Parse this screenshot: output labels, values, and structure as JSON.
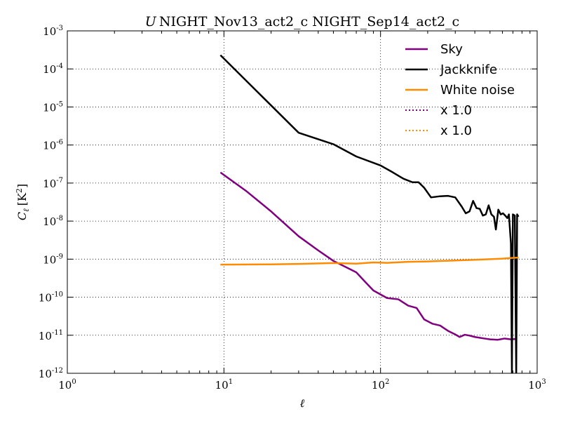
{
  "chart_data": {
    "type": "line",
    "title_symbol": "U",
    "title": "NIGHT_Nov13_act2_c NIGHT_Sep14_act2_c",
    "xlabel": "ℓ",
    "ylabel_main": "C",
    "ylabel_sub": "ℓ",
    "ylabel_unit": "[K",
    "ylabel_unit_sup": "2",
    "ylabel_unit_end": "]",
    "xscale": "log",
    "yscale": "log",
    "xlim": [
      1,
      1000
    ],
    "ylim": [
      1e-12,
      0.001
    ],
    "grid": true,
    "legend_position": "top-right",
    "x_ticks": [
      {
        "value": 1,
        "base": "10",
        "exp": "0"
      },
      {
        "value": 10,
        "base": "10",
        "exp": "1"
      },
      {
        "value": 100,
        "base": "10",
        "exp": "2"
      },
      {
        "value": 1000,
        "base": "10",
        "exp": "3"
      }
    ],
    "y_ticks": [
      {
        "value": 1e-12,
        "base": "10",
        "exp": "-12"
      },
      {
        "value": 1e-11,
        "base": "10",
        "exp": "-11"
      },
      {
        "value": 1e-10,
        "base": "10",
        "exp": "-10"
      },
      {
        "value": 1e-09,
        "base": "10",
        "exp": "-9"
      },
      {
        "value": 1e-08,
        "base": "10",
        "exp": "-8"
      },
      {
        "value": 1e-07,
        "base": "10",
        "exp": "-7"
      },
      {
        "value": 1e-06,
        "base": "10",
        "exp": "-6"
      },
      {
        "value": 1e-05,
        "base": "10",
        "exp": "-5"
      },
      {
        "value": 0.0001,
        "base": "10",
        "exp": "-4"
      },
      {
        "value": 0.001,
        "base": "10",
        "exp": "-3"
      }
    ],
    "series": [
      {
        "name": "Sky",
        "color": "#800080",
        "style": "solid",
        "points": [
          [
            9.5,
            1.9e-07
          ],
          [
            14,
            6e-08
          ],
          [
            20,
            1.8e-08
          ],
          [
            30,
            4e-09
          ],
          [
            40,
            1.7e-09
          ],
          [
            50,
            9e-10
          ],
          [
            60,
            6.2e-10
          ],
          [
            70,
            4.5e-10
          ],
          [
            80,
            2.5e-10
          ],
          [
            90,
            1.5e-10
          ],
          [
            110,
            9.5e-11
          ],
          [
            130,
            8.8e-11
          ],
          [
            150,
            6e-11
          ],
          [
            170,
            5.2e-11
          ],
          [
            190,
            2.6e-11
          ],
          [
            215,
            2e-11
          ],
          [
            240,
            1.8e-11
          ],
          [
            270,
            1.3e-11
          ],
          [
            300,
            1.05e-11
          ],
          [
            320,
            9e-12
          ],
          [
            345,
            1.03e-11
          ],
          [
            370,
            9.8e-12
          ],
          [
            400,
            9e-12
          ],
          [
            430,
            8.6e-12
          ],
          [
            460,
            8.2e-12
          ],
          [
            500,
            7.8e-12
          ],
          [
            560,
            7.6e-12
          ],
          [
            620,
            8.2e-12
          ],
          [
            680,
            7.8e-12
          ],
          [
            740,
            8e-12
          ]
        ]
      },
      {
        "name": "Jackknife",
        "color": "#000000",
        "style": "solid",
        "points": [
          [
            9.5,
            0.00023
          ],
          [
            30,
            2.1e-06
          ],
          [
            50,
            1.05e-06
          ],
          [
            70,
            5e-07
          ],
          [
            100,
            2.9e-07
          ],
          [
            120,
            1.9e-07
          ],
          [
            140,
            1.3e-07
          ],
          [
            160,
            1.05e-07
          ],
          [
            175,
            1.05e-07
          ],
          [
            190,
            7.5e-08
          ],
          [
            210,
            4.2e-08
          ],
          [
            240,
            4.5e-08
          ],
          [
            270,
            4.6e-08
          ],
          [
            300,
            4.2e-08
          ],
          [
            330,
            2.4e-08
          ],
          [
            350,
            1.6e-08
          ],
          [
            370,
            1.8e-08
          ],
          [
            390,
            3.4e-08
          ],
          [
            410,
            2.2e-08
          ],
          [
            430,
            2.1e-08
          ],
          [
            450,
            1.4e-08
          ],
          [
            470,
            1.5e-08
          ],
          [
            490,
            2.6e-08
          ],
          [
            510,
            1.5e-08
          ],
          [
            530,
            1.3e-08
          ],
          [
            545,
            6e-09
          ],
          [
            565,
            2e-08
          ],
          [
            585,
            1.5e-08
          ],
          [
            605,
            1.6e-08
          ],
          [
            625,
            1.4e-08
          ],
          [
            645,
            1.2e-08
          ],
          [
            660,
            1.5e-08
          ],
          [
            680,
            2.6e-09
          ],
          [
            690,
            1e-12
          ],
          [
            700,
            1.5e-08
          ],
          [
            720,
            1.4e-08
          ],
          [
            735,
            1e-12
          ],
          [
            745,
            1.5e-08
          ],
          [
            760,
            1.3e-08
          ]
        ]
      },
      {
        "name": "White noise",
        "color": "#ff8c00",
        "style": "solid",
        "points": [
          [
            9.5,
            7.2e-10
          ],
          [
            20,
            7.3e-10
          ],
          [
            30,
            7.5e-10
          ],
          [
            50,
            7.9e-10
          ],
          [
            70,
            7.6e-10
          ],
          [
            90,
            8.2e-10
          ],
          [
            110,
            8e-10
          ],
          [
            150,
            8.5e-10
          ],
          [
            200,
            8.7e-10
          ],
          [
            250,
            9e-10
          ],
          [
            300,
            9.2e-10
          ],
          [
            400,
            9.6e-10
          ],
          [
            500,
            1e-09
          ],
          [
            600,
            1.03e-09
          ],
          [
            700,
            1.08e-09
          ],
          [
            760,
            1.1e-09
          ]
        ]
      },
      {
        "name": "x 1.0",
        "color": "#800080",
        "style": "dotted",
        "points": []
      },
      {
        "name": "x 1.0",
        "color": "#ff8c00",
        "style": "dotted",
        "points": []
      }
    ]
  }
}
